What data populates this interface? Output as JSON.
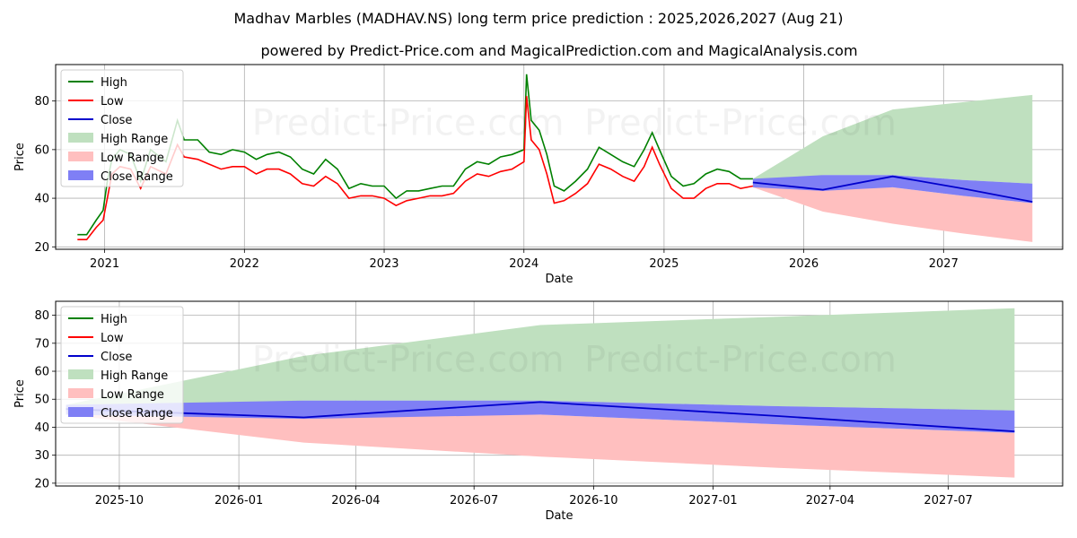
{
  "title": "Madhav Marbles (MADHAV.NS) long term price prediction : 2025,2026,2027 (Aug 21)",
  "subtitle": "powered by Predict-Price.com and MagicalPrediction.com and MagicalAnalysis.com",
  "watermark": "Predict-Price.com",
  "colors": {
    "high": "#008000",
    "low": "#ff0000",
    "close": "#0000cc",
    "high_range": "#bfe0bf",
    "low_range": "#ffbfbf",
    "close_range": "#7f7ff5"
  },
  "chart_data": [
    {
      "type": "line",
      "xlabel": "Date",
      "ylabel": "Price",
      "x_ticks": [
        "2021",
        "2022",
        "2023",
        "2024",
        "2025",
        "2026",
        "2027"
      ],
      "y_ticks": [
        20,
        40,
        60,
        80
      ],
      "xlim": [
        "2020-08-26",
        "2027-11-08"
      ],
      "ylim": [
        19,
        95
      ],
      "grid": true,
      "legend_position": "upper-left",
      "legend": [
        "High",
        "Low",
        "Close",
        "High Range",
        "Low Range",
        "Close Range"
      ],
      "history_high": [
        [
          "2020-10-22",
          25
        ],
        [
          "2020-11-15",
          25
        ],
        [
          "2020-12-10",
          31
        ],
        [
          "2020-12-28",
          35
        ],
        [
          "2021-01-08",
          47
        ],
        [
          "2021-01-20",
          56
        ],
        [
          "2021-02-10",
          60
        ],
        [
          "2021-03-10",
          58
        ],
        [
          "2021-04-05",
          47
        ],
        [
          "2021-05-01",
          60
        ],
        [
          "2021-06-10",
          55
        ],
        [
          "2021-07-10",
          72
        ],
        [
          "2021-07-28",
          64
        ],
        [
          "2021-09-01",
          64
        ],
        [
          "2021-10-01",
          59
        ],
        [
          "2021-11-01",
          58
        ],
        [
          "2021-12-01",
          60
        ],
        [
          "2022-01-01",
          59
        ],
        [
          "2022-02-01",
          56
        ],
        [
          "2022-03-01",
          58
        ],
        [
          "2022-04-01",
          59
        ],
        [
          "2022-05-01",
          57
        ],
        [
          "2022-06-01",
          52
        ],
        [
          "2022-07-01",
          50
        ],
        [
          "2022-08-01",
          56
        ],
        [
          "2022-09-01",
          52
        ],
        [
          "2022-10-01",
          44
        ],
        [
          "2022-11-01",
          46
        ],
        [
          "2022-12-01",
          45
        ],
        [
          "2023-01-01",
          45
        ],
        [
          "2023-02-01",
          40
        ],
        [
          "2023-03-01",
          43
        ],
        [
          "2023-04-01",
          43
        ],
        [
          "2023-05-01",
          44
        ],
        [
          "2023-06-01",
          45
        ],
        [
          "2023-07-01",
          45
        ],
        [
          "2023-08-01",
          52
        ],
        [
          "2023-09-01",
          55
        ],
        [
          "2023-10-01",
          54
        ],
        [
          "2023-11-01",
          57
        ],
        [
          "2023-12-01",
          58
        ],
        [
          "2024-01-01",
          60
        ],
        [
          "2024-01-08",
          91
        ],
        [
          "2024-01-20",
          72
        ],
        [
          "2024-02-10",
          68
        ],
        [
          "2024-03-01",
          58
        ],
        [
          "2024-03-20",
          45
        ],
        [
          "2024-04-15",
          43
        ],
        [
          "2024-05-15",
          47
        ],
        [
          "2024-06-15",
          52
        ],
        [
          "2024-07-15",
          61
        ],
        [
          "2024-08-15",
          58
        ],
        [
          "2024-09-15",
          55
        ],
        [
          "2024-10-15",
          53
        ],
        [
          "2024-11-10",
          60
        ],
        [
          "2024-12-01",
          67
        ],
        [
          "2024-12-20",
          60
        ],
        [
          "2025-01-20",
          49
        ],
        [
          "2025-02-20",
          45
        ],
        [
          "2025-03-20",
          46
        ],
        [
          "2025-04-20",
          50
        ],
        [
          "2025-05-20",
          52
        ],
        [
          "2025-06-20",
          51
        ],
        [
          "2025-07-20",
          48
        ],
        [
          "2025-08-21",
          48
        ]
      ],
      "history_low": [
        [
          "2020-10-22",
          23
        ],
        [
          "2020-11-15",
          23
        ],
        [
          "2020-12-10",
          28
        ],
        [
          "2020-12-28",
          31
        ],
        [
          "2021-01-08",
          40
        ],
        [
          "2021-01-20",
          50
        ],
        [
          "2021-02-10",
          53
        ],
        [
          "2021-03-10",
          52
        ],
        [
          "2021-04-05",
          44
        ],
        [
          "2021-05-01",
          53
        ],
        [
          "2021-06-10",
          50
        ],
        [
          "2021-07-10",
          62
        ],
        [
          "2021-07-28",
          57
        ],
        [
          "2021-09-01",
          56
        ],
        [
          "2021-10-01",
          54
        ],
        [
          "2021-11-01",
          52
        ],
        [
          "2021-12-01",
          53
        ],
        [
          "2022-01-01",
          53
        ],
        [
          "2022-02-01",
          50
        ],
        [
          "2022-03-01",
          52
        ],
        [
          "2022-04-01",
          52
        ],
        [
          "2022-05-01",
          50
        ],
        [
          "2022-06-01",
          46
        ],
        [
          "2022-07-01",
          45
        ],
        [
          "2022-08-01",
          49
        ],
        [
          "2022-09-01",
          46
        ],
        [
          "2022-10-01",
          40
        ],
        [
          "2022-11-01",
          41
        ],
        [
          "2022-12-01",
          41
        ],
        [
          "2023-01-01",
          40
        ],
        [
          "2023-02-01",
          37
        ],
        [
          "2023-03-01",
          39
        ],
        [
          "2023-04-01",
          40
        ],
        [
          "2023-05-01",
          41
        ],
        [
          "2023-06-01",
          41
        ],
        [
          "2023-07-01",
          42
        ],
        [
          "2023-08-01",
          47
        ],
        [
          "2023-09-01",
          50
        ],
        [
          "2023-10-01",
          49
        ],
        [
          "2023-11-01",
          51
        ],
        [
          "2023-12-01",
          52
        ],
        [
          "2024-01-01",
          55
        ],
        [
          "2024-01-08",
          82
        ],
        [
          "2024-01-20",
          64
        ],
        [
          "2024-02-10",
          60
        ],
        [
          "2024-03-01",
          50
        ],
        [
          "2024-03-20",
          38
        ],
        [
          "2024-04-15",
          39
        ],
        [
          "2024-05-15",
          42
        ],
        [
          "2024-06-15",
          46
        ],
        [
          "2024-07-15",
          54
        ],
        [
          "2024-08-15",
          52
        ],
        [
          "2024-09-15",
          49
        ],
        [
          "2024-10-15",
          47
        ],
        [
          "2024-11-10",
          53
        ],
        [
          "2024-12-01",
          61
        ],
        [
          "2024-12-20",
          54
        ],
        [
          "2025-01-20",
          44
        ],
        [
          "2025-02-20",
          40
        ],
        [
          "2025-03-20",
          40
        ],
        [
          "2025-04-20",
          44
        ],
        [
          "2025-05-20",
          46
        ],
        [
          "2025-06-20",
          46
        ],
        [
          "2025-07-20",
          44
        ],
        [
          "2025-08-21",
          45
        ]
      ]
    },
    {
      "type": "area",
      "xlabel": "Date",
      "ylabel": "Price",
      "x_ticks": [
        "2025-10",
        "2026-01",
        "2026-04",
        "2026-07",
        "2026-10",
        "2027-01",
        "2027-04",
        "2027-07"
      ],
      "y_ticks": [
        20,
        30,
        40,
        50,
        60,
        70,
        80
      ],
      "xlim": [
        "2025-08-13",
        "2027-09-27"
      ],
      "ylim": [
        19,
        85
      ],
      "grid": true,
      "legend_position": "upper-left",
      "legend": [
        "High",
        "Low",
        "Close",
        "High Range",
        "Low Range",
        "Close Range"
      ],
      "forecast_x": [
        "2025-08-21",
        "2026-02-20",
        "2026-08-21",
        "2027-02-20",
        "2027-08-21"
      ],
      "high_range_upper": [
        48,
        65.5,
        76.5,
        79.5,
        82.5
      ],
      "high_range_lower": [
        45.5,
        49.5,
        49.5,
        47.5,
        46
      ],
      "low_range_upper": [
        47,
        44,
        44.5,
        41,
        38
      ],
      "low_range_lower": [
        44.5,
        34.5,
        29.5,
        25.5,
        22
      ],
      "close_range_upper": [
        48,
        49.5,
        49.5,
        47.5,
        46
      ],
      "close_range_lower": [
        44.5,
        43,
        44.5,
        41,
        38
      ],
      "close": [
        46.5,
        43.5,
        49,
        44,
        38.5
      ]
    }
  ]
}
